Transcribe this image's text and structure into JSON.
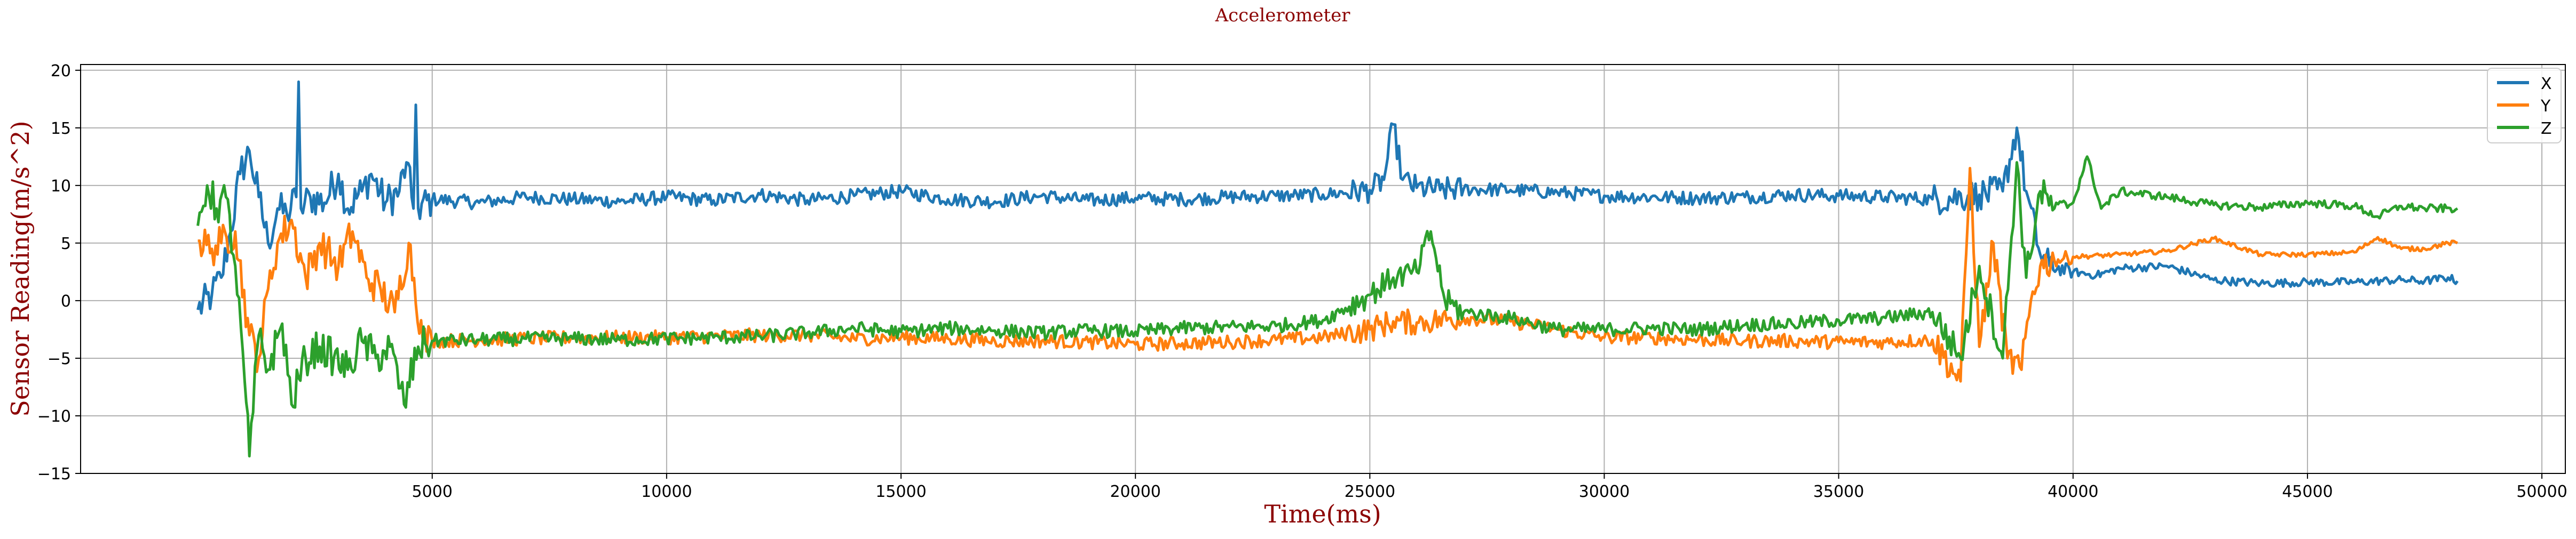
{
  "chart_data": {
    "type": "line",
    "title": "Accelerometer",
    "xlabel": "Time(ms)",
    "ylabel": "Sensor Reading(m/s^2)",
    "xlim": [
      -2500,
      50500
    ],
    "ylim": [
      -15,
      20.5
    ],
    "xticks": [
      5000,
      10000,
      15000,
      20000,
      25000,
      30000,
      35000,
      40000,
      45000,
      50000
    ],
    "yticks": [
      -15,
      -10,
      -5,
      0,
      5,
      10,
      15,
      20
    ],
    "grid": true,
    "legend_position": "top-right",
    "x_range": [
      0,
      48200
    ],
    "series": [
      {
        "name": "X",
        "color": "#1f77b4",
        "values": [
          [
            0,
            -0.8
          ],
          [
            300,
            0.5
          ],
          [
            500,
            2
          ],
          [
            700,
            6
          ],
          [
            900,
            11
          ],
          [
            1100,
            13
          ],
          [
            1300,
            9
          ],
          [
            1500,
            5
          ],
          [
            1700,
            8
          ],
          [
            1900,
            7.5
          ],
          [
            2100,
            9
          ],
          [
            2150,
            19
          ],
          [
            2200,
            8
          ],
          [
            2400,
            9
          ],
          [
            2700,
            8.5
          ],
          [
            3000,
            11
          ],
          [
            3200,
            8
          ],
          [
            3500,
            9.5
          ],
          [
            3700,
            11
          ],
          [
            4000,
            8.5
          ],
          [
            4300,
            9.5
          ],
          [
            4450,
            12
          ],
          [
            4600,
            8
          ],
          [
            4650,
            17
          ],
          [
            4700,
            8
          ],
          [
            5000,
            8.8
          ],
          [
            6000,
            8.5
          ],
          [
            7000,
            9
          ],
          [
            8000,
            8.8
          ],
          [
            9000,
            8.6
          ],
          [
            10000,
            9
          ],
          [
            11000,
            8.7
          ],
          [
            12000,
            9.2
          ],
          [
            13000,
            8.7
          ],
          [
            14000,
            9.1
          ],
          [
            15000,
            9.5
          ],
          [
            16000,
            8.8
          ],
          [
            17000,
            8.6
          ],
          [
            18000,
            9.1
          ],
          [
            19000,
            8.7
          ],
          [
            20000,
            8.9
          ],
          [
            21000,
            8.8
          ],
          [
            22000,
            9
          ],
          [
            23000,
            9.1
          ],
          [
            24000,
            9.2
          ],
          [
            25000,
            9.6
          ],
          [
            25300,
            10.5
          ],
          [
            25500,
            15.3
          ],
          [
            25700,
            10.5
          ],
          [
            26000,
            9.8
          ],
          [
            26500,
            9.6
          ],
          [
            27000,
            9.7
          ],
          [
            28000,
            9.6
          ],
          [
            29000,
            9.4
          ],
          [
            30000,
            9.1
          ],
          [
            31000,
            9
          ],
          [
            32000,
            8.9
          ],
          [
            33000,
            9
          ],
          [
            34000,
            9.2
          ],
          [
            35000,
            9.1
          ],
          [
            36000,
            9
          ],
          [
            37000,
            8.8
          ],
          [
            38000,
            9.2
          ],
          [
            38500,
            9.5
          ],
          [
            38800,
            15
          ],
          [
            39000,
            9.5
          ],
          [
            39300,
            4
          ],
          [
            39500,
            3
          ],
          [
            40000,
            2.5
          ],
          [
            40500,
            2.2
          ],
          [
            41000,
            2.8
          ],
          [
            42000,
            3
          ],
          [
            43000,
            1.8
          ],
          [
            44000,
            1.5
          ],
          [
            45000,
            1.6
          ],
          [
            46000,
            1.6
          ],
          [
            47000,
            1.8
          ],
          [
            47500,
            1.7
          ],
          [
            48000,
            2
          ],
          [
            48200,
            1.7
          ]
        ]
      },
      {
        "name": "Y",
        "color": "#ff7f0e",
        "values": [
          [
            0,
            5.2
          ],
          [
            300,
            4.5
          ],
          [
            500,
            5
          ],
          [
            800,
            6
          ],
          [
            1100,
            -3
          ],
          [
            1300,
            -5
          ],
          [
            1500,
            1
          ],
          [
            1700,
            5
          ],
          [
            2000,
            7
          ],
          [
            2300,
            2
          ],
          [
            2600,
            5
          ],
          [
            3000,
            3
          ],
          [
            3300,
            6
          ],
          [
            3600,
            2
          ],
          [
            3900,
            1
          ],
          [
            4200,
            -1
          ],
          [
            4500,
            5
          ],
          [
            4800,
            -3.5
          ],
          [
            5000,
            -3.5
          ],
          [
            6000,
            -3.4
          ],
          [
            7000,
            -3.3
          ],
          [
            8000,
            -3.2
          ],
          [
            9000,
            -3.2
          ],
          [
            10000,
            -3.2
          ],
          [
            11000,
            -3.1
          ],
          [
            12000,
            -3
          ],
          [
            13000,
            -3
          ],
          [
            14000,
            -3.3
          ],
          [
            15000,
            -3.2
          ],
          [
            16000,
            -3.3
          ],
          [
            17000,
            -3.5
          ],
          [
            18000,
            -3.5
          ],
          [
            19000,
            -3.6
          ],
          [
            20000,
            -3.8
          ],
          [
            21000,
            -3.7
          ],
          [
            22000,
            -3.6
          ],
          [
            23000,
            -3.4
          ],
          [
            24000,
            -3.2
          ],
          [
            25000,
            -2.5
          ],
          [
            25500,
            -1.8
          ],
          [
            26000,
            -1.9
          ],
          [
            27000,
            -1.5
          ],
          [
            28000,
            -1.8
          ],
          [
            29000,
            -2.5
          ],
          [
            30000,
            -3.2
          ],
          [
            31000,
            -3.2
          ],
          [
            32000,
            -3.4
          ],
          [
            33000,
            -3.5
          ],
          [
            34000,
            -3.5
          ],
          [
            35000,
            -3.6
          ],
          [
            36000,
            -3.6
          ],
          [
            37000,
            -3.4
          ],
          [
            37600,
            -7
          ],
          [
            37800,
            11.5
          ],
          [
            38000,
            -4
          ],
          [
            38300,
            5
          ],
          [
            38600,
            -5
          ],
          [
            38900,
            -6
          ],
          [
            39100,
            0
          ],
          [
            39300,
            3
          ],
          [
            39600,
            3.5
          ],
          [
            40000,
            3.8
          ],
          [
            41000,
            4
          ],
          [
            42000,
            4.3
          ],
          [
            43000,
            5.4
          ],
          [
            44000,
            4
          ],
          [
            45000,
            4
          ],
          [
            46000,
            4.2
          ],
          [
            46500,
            5.5
          ],
          [
            47000,
            4.5
          ],
          [
            47500,
            4.5
          ],
          [
            48000,
            5
          ],
          [
            48200,
            5
          ]
        ]
      },
      {
        "name": "Z",
        "color": "#2ca02c",
        "values": [
          [
            0,
            6.5
          ],
          [
            200,
            10
          ],
          [
            400,
            8
          ],
          [
            600,
            9
          ],
          [
            800,
            3
          ],
          [
            1000,
            -7
          ],
          [
            1100,
            -13.5
          ],
          [
            1300,
            -3
          ],
          [
            1500,
            -6
          ],
          [
            1800,
            -2
          ],
          [
            2000,
            -9
          ],
          [
            2300,
            -5
          ],
          [
            2600,
            -4
          ],
          [
            2900,
            -5
          ],
          [
            3200,
            -6
          ],
          [
            3500,
            -3.5
          ],
          [
            3800,
            -5
          ],
          [
            4100,
            -4
          ],
          [
            4400,
            -9
          ],
          [
            4700,
            -4
          ],
          [
            5000,
            -3.5
          ],
          [
            6000,
            -3.4
          ],
          [
            7000,
            -3.3
          ],
          [
            8000,
            -3.3
          ],
          [
            9000,
            -3.4
          ],
          [
            10000,
            -3.3
          ],
          [
            11000,
            -3.2
          ],
          [
            12000,
            -3.1
          ],
          [
            13000,
            -2.8
          ],
          [
            14000,
            -2.4
          ],
          [
            15000,
            -2.7
          ],
          [
            16000,
            -2.4
          ],
          [
            17000,
            -2.6
          ],
          [
            18000,
            -2.8
          ],
          [
            19000,
            -2.6
          ],
          [
            20000,
            -2.7
          ],
          [
            21000,
            -2.4
          ],
          [
            22000,
            -2.3
          ],
          [
            23000,
            -2.2
          ],
          [
            24000,
            -1.7
          ],
          [
            25000,
            0.5
          ],
          [
            25500,
            2
          ],
          [
            26000,
            2.5
          ],
          [
            26300,
            6
          ],
          [
            26600,
            0
          ],
          [
            27000,
            -1
          ],
          [
            28000,
            -1.5
          ],
          [
            29000,
            -2.5
          ],
          [
            30000,
            -2.5
          ],
          [
            31000,
            -2.4
          ],
          [
            32000,
            -2.5
          ],
          [
            33000,
            -2.1
          ],
          [
            34000,
            -2
          ],
          [
            35000,
            -1.7
          ],
          [
            36000,
            -1.5
          ],
          [
            37000,
            -1
          ],
          [
            37600,
            -5
          ],
          [
            38000,
            3
          ],
          [
            38500,
            -5
          ],
          [
            38800,
            12
          ],
          [
            39000,
            2
          ],
          [
            39300,
            9.5
          ],
          [
            39600,
            8
          ],
          [
            40000,
            8.5
          ],
          [
            40300,
            12.5
          ],
          [
            40600,
            8
          ],
          [
            41000,
            9.5
          ],
          [
            42000,
            9
          ],
          [
            43000,
            8.3
          ],
          [
            44000,
            8.1
          ],
          [
            45000,
            8.5
          ],
          [
            46000,
            8.2
          ],
          [
            46500,
            7.3
          ],
          [
            47000,
            8.2
          ],
          [
            47500,
            8
          ],
          [
            48200,
            8
          ]
        ]
      }
    ]
  }
}
